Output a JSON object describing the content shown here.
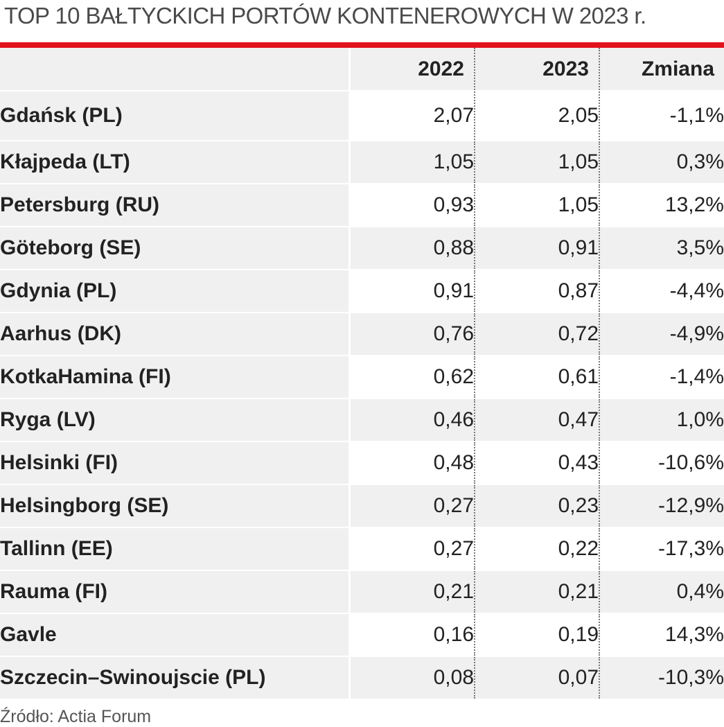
{
  "header": {
    "title": "TOP 10 BAŁTYCKICH PORTÓW KONTENEROWYCH W 2023 r."
  },
  "colors": {
    "accent": "#e1141e",
    "row_shade": "#f0f0f0",
    "text": "#222222"
  },
  "chart_data": {
    "type": "table",
    "title": "TOP 10 BAŁTYCKICH PORTÓW KONTENEROWYCH W 2023 r.",
    "columns": [
      "",
      "2022",
      "2023",
      "Zmiana"
    ],
    "rows": [
      {
        "port": "Gdańsk (PL)",
        "v2022": "2,07",
        "v2023": "2,05",
        "change": "-1,1%"
      },
      {
        "port": "Kłajpeda (LT)",
        "v2022": "1,05",
        "v2023": "1,05",
        "change": "0,3%"
      },
      {
        "port": "Petersburg (RU)",
        "v2022": "0,93",
        "v2023": "1,05",
        "change": "13,2%"
      },
      {
        "port": "Göteborg (SE)",
        "v2022": "0,88",
        "v2023": "0,91",
        "change": "3,5%"
      },
      {
        "port": "Gdynia (PL)",
        "v2022": "0,91",
        "v2023": "0,87",
        "change": "-4,4%"
      },
      {
        "port": "Aarhus (DK)",
        "v2022": "0,76",
        "v2023": "0,72",
        "change": "-4,9%"
      },
      {
        "port": "KotkaHamina (FI)",
        "v2022": "0,62",
        "v2023": "0,61",
        "change": "-1,4%"
      },
      {
        "port": "Ryga (LV)",
        "v2022": "0,46",
        "v2023": "0,47",
        "change": "1,0%"
      },
      {
        "port": "Helsinki (FI)",
        "v2022": "0,48",
        "v2023": "0,43",
        "change": "-10,6%"
      },
      {
        "port": "Helsingborg (SE)",
        "v2022": "0,27",
        "v2023": "0,23",
        "change": "-12,9%"
      },
      {
        "port": "Tallinn (EE)",
        "v2022": "0,27",
        "v2023": "0,22",
        "change": "-17,3%"
      },
      {
        "port": "Rauma (FI)",
        "v2022": "0,21",
        "v2023": "0,21",
        "change": "0,4%"
      },
      {
        "port": "Gavle",
        "v2022": "0,16",
        "v2023": "0,19",
        "change": "14,3%"
      },
      {
        "port": "Szczecin–Swinoujscie (PL)",
        "v2022": "0,08",
        "v2023": "0,07",
        "change": "-10,3%"
      }
    ],
    "source": "Źródło: Actia Forum"
  }
}
